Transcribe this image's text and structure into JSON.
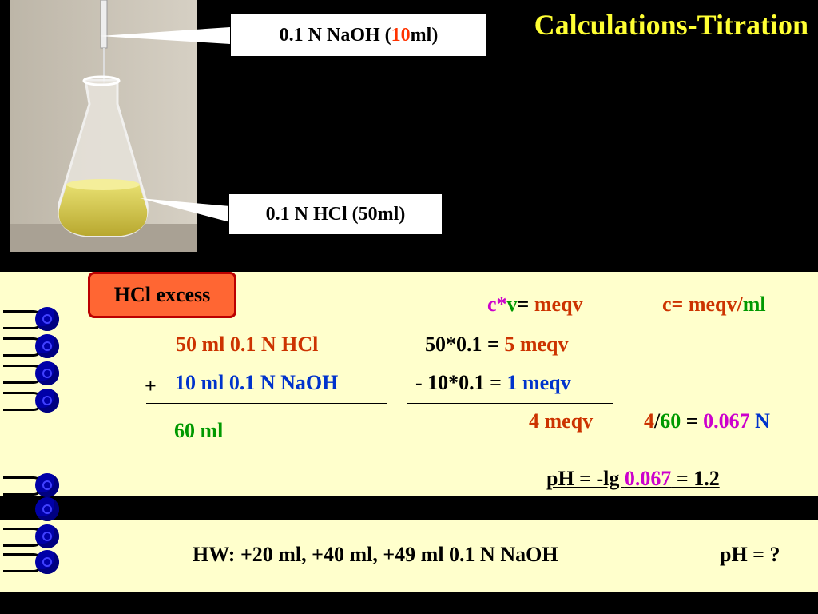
{
  "title": "Calculations-Titration",
  "callouts": {
    "naoh_prefix": "0.1 N NaOH (",
    "naoh_volume": "10",
    "naoh_suffix": " ml)",
    "hcl": "0.1 N HCl (50ml)"
  },
  "badge": "HCl excess",
  "formulas": {
    "f1_c": "c*",
    "f1_v": "v",
    "f1_eq": "= ",
    "f1_meqv": "meqv",
    "f2_c": "c= meqv/",
    "f2_ml": "ml"
  },
  "volumes": {
    "hcl": "50 ml 0.1 N HCl",
    "plus": "+",
    "naoh": "10 ml 0.1 N NaOH",
    "total": "60 ml"
  },
  "meqv": {
    "line1_calc": "50*0.1 = ",
    "line1_value": "5 meqv",
    "line2_calc": "- 10*0.1 = ",
    "line2_value": "1 meqv",
    "result": "4 meqv"
  },
  "concentration": {
    "num": "4",
    "slash": "/",
    "den": "60",
    "eq": " = ",
    "value": "0.067",
    "unit": " N"
  },
  "ph": {
    "prefix": "pH = -lg ",
    "value": "0.067",
    "suffix": " = 1.2"
  },
  "homework": {
    "text": "HW: +20 ml, +40 ml, +49 ml  0.1 N NaOH",
    "question": "pH = ?"
  },
  "colors": {
    "title": "#ffff33",
    "panel": "#ffffcc",
    "badge": "#ff6633",
    "brown": "#cc3300",
    "blue": "#0033cc",
    "green": "#009900",
    "magenta": "#cc00cc"
  }
}
